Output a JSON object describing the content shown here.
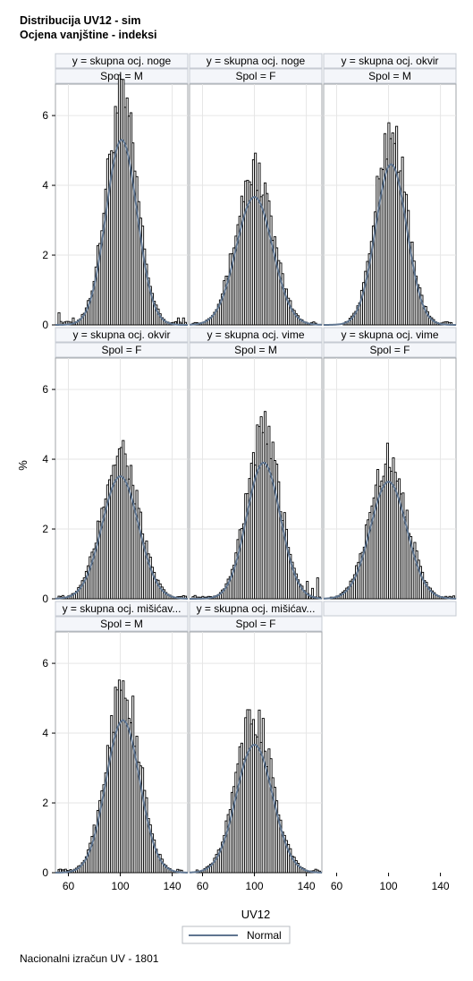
{
  "title": "Distribucija UV12 - sim",
  "subtitle": "Ocjena vanjštine - indeksi",
  "footnote": "Nacionalni izračun UV - 1801",
  "chart_data": {
    "type": "histogram-panel",
    "xlabel": "UV12",
    "ylabel": "%",
    "xlim": [
      50,
      152
    ],
    "ylim": [
      0,
      6.9
    ],
    "xticks": [
      60,
      100,
      140
    ],
    "yticks": [
      0,
      2,
      4,
      6
    ],
    "legend": {
      "label": "Normal",
      "placement": "bottom-center",
      "color": "#5f7590"
    },
    "bar_color": "#000000",
    "curve_color": "#5f7590",
    "panels": [
      {
        "label_y": "y = skupna ocj. noge",
        "label_spol": "Spol = M",
        "mean": 101,
        "sd": 12,
        "peak": 6.8,
        "xmin": 52,
        "xmax": 150,
        "edges": [
          {
            "x": 52,
            "v": 0.35
          },
          {
            "x": 58,
            "v": 0.1
          },
          {
            "x": 63,
            "v": 0.2
          },
          {
            "x": 70,
            "v": 0.3
          },
          {
            "x": 144,
            "v": 0.2
          },
          {
            "x": 148,
            "v": 0.2
          }
        ]
      },
      {
        "label_y": "y = skupna ocj. noge",
        "label_spol": "Spol = F",
        "mean": 100,
        "sd": 14,
        "peak": 4.7,
        "xmin": 52,
        "xmax": 148,
        "edges": []
      },
      {
        "label_y": "y = skupna ocj. okvir",
        "label_spol": "Spol = M",
        "mean": 102,
        "sd": 12,
        "peak": 5.9,
        "xmin": 65,
        "xmax": 148,
        "edges": []
      },
      {
        "label_y": "y = skupna ocj. okvir",
        "label_spol": "Spol = F",
        "mean": 100,
        "sd": 14,
        "peak": 4.5,
        "xmin": 52,
        "xmax": 150,
        "edges": []
      },
      {
        "label_y": "y = skupna ocj. vime",
        "label_spol": "Spol = M",
        "mean": 107,
        "sd": 13,
        "peak": 5.0,
        "xmin": 52,
        "xmax": 150,
        "edges": [
          {
            "x": 140,
            "v": 0.5
          },
          {
            "x": 144,
            "v": 0.3
          },
          {
            "x": 148,
            "v": 0.6
          }
        ]
      },
      {
        "label_y": "y = skupna ocj. vime",
        "label_spol": "Spol = F",
        "mean": 100,
        "sd": 14,
        "peak": 4.3,
        "xmin": 55,
        "xmax": 150,
        "edges": []
      },
      {
        "label_y": "y = skupna ocj. mišićav...",
        "label_spol": "Spol = M",
        "mean": 102,
        "sd": 13,
        "peak": 5.6,
        "xmin": 52,
        "xmax": 148,
        "edges": [
          {
            "x": 53,
            "v": 0.1
          },
          {
            "x": 57,
            "v": 0.1
          }
        ]
      },
      {
        "label_y": "y = skupna ocj. mišićav...",
        "label_spol": "Spol = F",
        "mean": 100,
        "sd": 14,
        "peak": 4.7,
        "xmin": 55,
        "xmax": 150,
        "edges": []
      }
    ]
  }
}
